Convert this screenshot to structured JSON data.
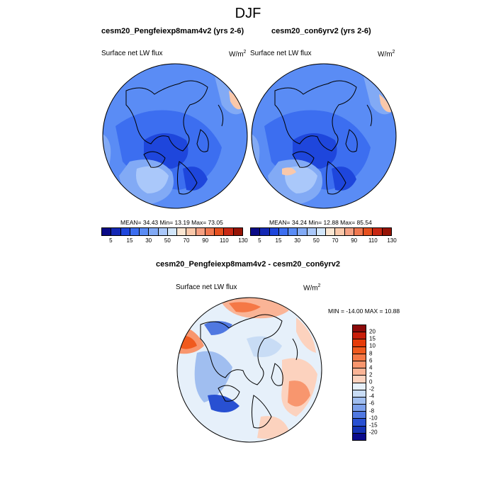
{
  "title": "DJF",
  "unit_w": "W/m",
  "unit_exp": "2",
  "panel1": {
    "title": "cesm20_Pengfeiexp8mam4v2 (yrs 2-6)",
    "variable": "Surface net LW flux",
    "stats": "MEAN=  34.43  Min=  13.19  Max=  73.05"
  },
  "panel2": {
    "title": "cesm20_con6yrv2 (yrs 2-6)",
    "variable": "Surface net LW flux",
    "stats": "MEAN=  34.24  Min=  12.88  Max=  85.54"
  },
  "panel3": {
    "title": "cesm20_Pengfeiexp8mam4v2 - cesm20_con6yrv2",
    "variable": "Surface net LW flux",
    "stats": "MIN = -14.00 MAX =  10.88"
  },
  "colorbar_main": {
    "ticks": [
      "5",
      "15",
      "30",
      "50",
      "70",
      "90",
      "110",
      "130"
    ],
    "colors": [
      "#0a0a86",
      "#1428b4",
      "#1e46dc",
      "#3c6ef0",
      "#5a8cf5",
      "#82aaf5",
      "#aac8fa",
      "#d2e6fa",
      "#fae6d2",
      "#fac8aa",
      "#f5a082",
      "#f07850",
      "#e6501e",
      "#c82814",
      "#961406"
    ]
  },
  "colorbar_diff": {
    "ticks": [
      "20",
      "15",
      "10",
      "8",
      "6",
      "4",
      "2",
      "0",
      "-2",
      "-4",
      "-6",
      "-8",
      "-10",
      "-15",
      "-20"
    ],
    "colors": [
      "#8c0a0a",
      "#c81e0a",
      "#e63c0a",
      "#f05a1e",
      "#f57846",
      "#f8966e",
      "#fab496",
      "#fcd2be",
      "#e6f0fa",
      "#c8dcf5",
      "#a0beF0",
      "#7ca0eb",
      "#5078e1",
      "#2850d2",
      "#1432b4",
      "#0a0a8c"
    ]
  }
}
